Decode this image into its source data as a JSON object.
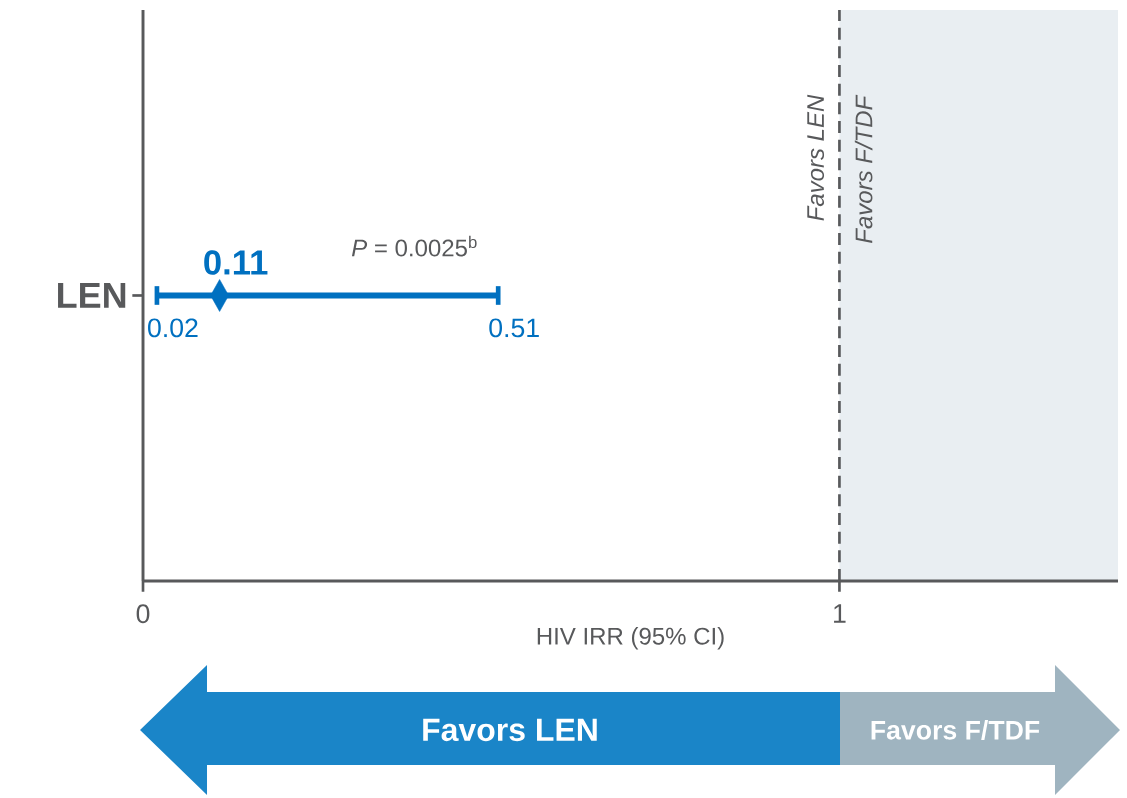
{
  "chart_data": {
    "type": "scatter",
    "orientation": "horizontal",
    "categories": [
      "LEN"
    ],
    "values": [
      0.11
    ],
    "errors": [
      [
        0.02,
        0.51
      ]
    ],
    "value_labels": [
      "0.11"
    ],
    "color": "#0070c0",
    "marker": "diamond",
    "xlim": [
      0,
      1.4
    ],
    "xticks": [
      0,
      1
    ],
    "xlabel": "HIV IRR (95% CI)",
    "ref_lines": [
      {
        "axis": "x",
        "value": 1,
        "color": "#58595b",
        "line_style": "dashed"
      }
    ],
    "bands": [
      {
        "axis": "x",
        "from": 1,
        "to": 1.4,
        "color": "#e9eef2"
      }
    ],
    "annotations": [
      "*Favors LEN*",
      "*Favors F/TDF*",
      "*P* = 0.0025$^{b}$",
      {
        "text": "0.02",
        "x": 0.02,
        "y": "LEN"
      },
      {
        "text": "0.51",
        "x": 0.51,
        "y": "LEN"
      },
      "Favors LEN",
      "Favors F/TDF"
    ]
  }
}
